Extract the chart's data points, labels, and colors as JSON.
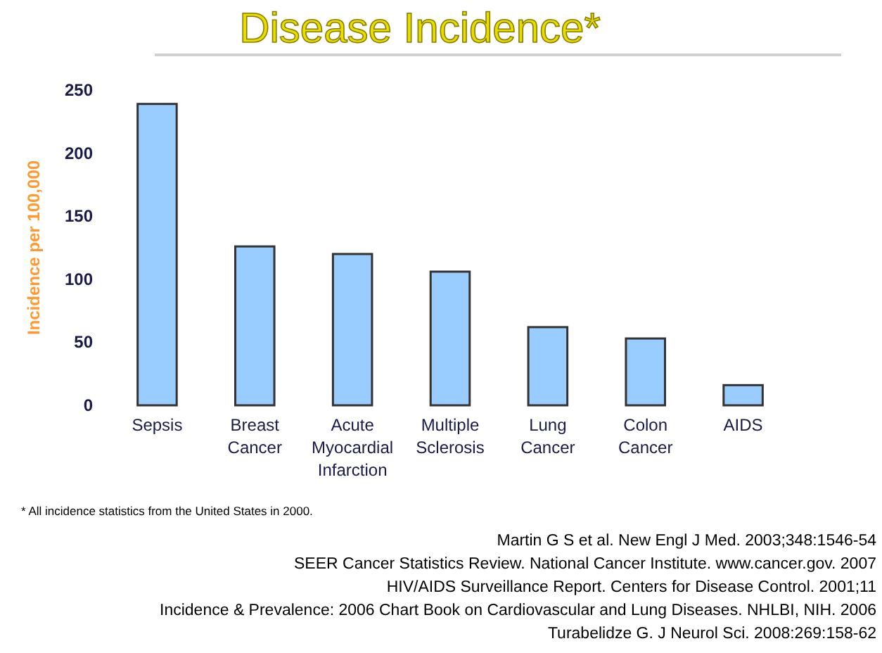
{
  "chart_data": {
    "type": "bar",
    "title": "Disease Incidence*",
    "ylabel": "Incidence per 100,000",
    "categories": [
      "Sepsis",
      "Breast Cancer",
      "Acute Myocardial Infarction",
      "Multiple Sclerosis",
      "Lung Cancer",
      "Colon Cancer",
      "AIDS"
    ],
    "values": [
      239,
      126,
      120,
      106,
      62,
      53,
      16
    ],
    "color": "#99ccff",
    "ylim": [
      0,
      250
    ],
    "yticks": [
      0,
      50,
      100,
      150,
      200,
      250
    ],
    "grid": false,
    "annotations": [
      "* All incidence statistics from the United States in 2000.",
      "Martin G S et al. New Engl J Med. 2003;348:1546-54",
      "SEER Cancer Statistics Review. National Cancer Institute. www.cancer.gov. 2007",
      "HIV/AIDS Surveillance Report. Centers for Disease Control. 2001;11",
      "Incidence & Prevalence: 2006 Chart Book on Cardiovascular and Lung Diseases. NHLBI, NIH. 2006",
      "Turabelidze G. J Neurol Sci. 2008:269:158-62"
    ]
  }
}
